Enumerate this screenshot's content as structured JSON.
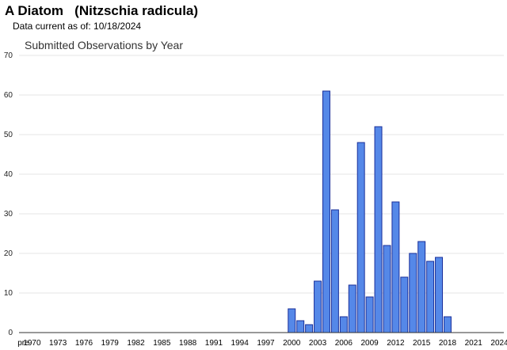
{
  "header": {
    "title": "A Diatom   (Nitzschia radicula)",
    "data_current": "Data current as of: 10/18/2024"
  },
  "colors": {
    "bar_fill": "#5588e8",
    "bar_stroke": "#1a2f9a",
    "grid": "#e6e6e6",
    "axis": "#333333"
  },
  "chart_data": {
    "type": "bar",
    "title": "Submitted Observations by Year",
    "xlabel": "",
    "ylabel": "",
    "ylim": [
      0,
      70
    ],
    "y_ticks": [
      0,
      10,
      20,
      30,
      40,
      50,
      60,
      70
    ],
    "grid": true,
    "x_tick_labels": [
      "pre",
      "1970",
      "1973",
      "1976",
      "1979",
      "1982",
      "1985",
      "1988",
      "1991",
      "1994",
      "1997",
      "2000",
      "2003",
      "2006",
      "2009",
      "2012",
      "2015",
      "2018",
      "2021",
      "2024"
    ],
    "categories": [
      "pre",
      "1970",
      "1971",
      "1972",
      "1973",
      "1974",
      "1975",
      "1976",
      "1977",
      "1978",
      "1979",
      "1980",
      "1981",
      "1982",
      "1983",
      "1984",
      "1985",
      "1986",
      "1987",
      "1988",
      "1989",
      "1990",
      "1991",
      "1992",
      "1993",
      "1994",
      "1995",
      "1996",
      "1997",
      "1998",
      "1999",
      "2000",
      "2001",
      "2002",
      "2003",
      "2004",
      "2005",
      "2006",
      "2007",
      "2008",
      "2009",
      "2010",
      "2011",
      "2012",
      "2013",
      "2014",
      "2015",
      "2016",
      "2017",
      "2018",
      "2019",
      "2020",
      "2021",
      "2022",
      "2023",
      "2024"
    ],
    "values": [
      0,
      0,
      0,
      0,
      0,
      0,
      0,
      0,
      0,
      0,
      0,
      0,
      0,
      0,
      0,
      0,
      0,
      0,
      0,
      0,
      0,
      0,
      0,
      0,
      0,
      0,
      0,
      0,
      0,
      0,
      0,
      6,
      3,
      2,
      13,
      61,
      31,
      4,
      12,
      48,
      9,
      52,
      22,
      33,
      14,
      20,
      23,
      18,
      19,
      4,
      0,
      0,
      0,
      0,
      0,
      0
    ]
  }
}
